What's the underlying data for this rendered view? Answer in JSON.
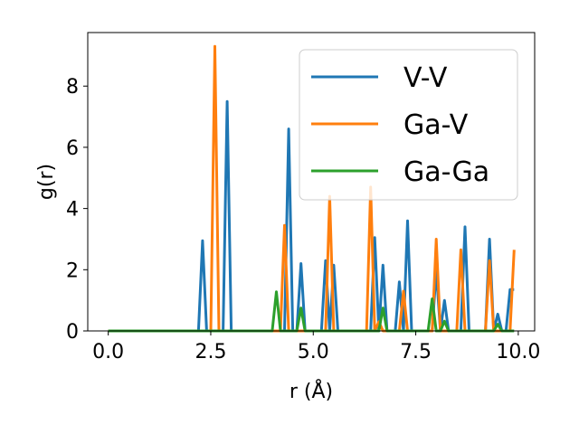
{
  "chart_data": {
    "type": "line",
    "title": "",
    "xlabel": "r (Å)",
    "ylabel": "g(r)",
    "xlim": [
      -0.5,
      10.4
    ],
    "ylim": [
      0,
      9.75
    ],
    "xticks": [
      0.0,
      2.5,
      5.0,
      7.5,
      10.0
    ],
    "xtick_labels": [
      "0.0",
      "2.5",
      "5.0",
      "7.5",
      "10.0"
    ],
    "yticks": [
      0,
      2,
      4,
      6,
      8
    ],
    "ytick_labels": [
      "0",
      "2",
      "4",
      "6",
      "8"
    ],
    "grid": false,
    "legend_position": "top-right",
    "series": [
      {
        "name": "V-V",
        "color": "#1f77b4",
        "x": [
          0,
          2.2,
          2.3,
          2.4,
          2.8,
          2.9,
          3.0,
          4.3,
          4.4,
          4.5,
          4.6,
          4.7,
          4.8,
          5.2,
          5.3,
          5.4,
          5.5,
          5.6,
          6.4,
          6.5,
          6.6,
          6.7,
          6.8,
          7.0,
          7.1,
          7.2,
          7.3,
          7.4,
          7.9,
          8.0,
          8.1,
          8.2,
          8.3,
          8.6,
          8.7,
          8.8,
          9.2,
          9.3,
          9.4,
          9.5,
          9.6,
          9.7,
          9.8,
          9.9
        ],
        "y": [
          0,
          0,
          2.95,
          0,
          0,
          7.5,
          0,
          0,
          6.6,
          0,
          0,
          2.2,
          0,
          0,
          2.3,
          0,
          2.15,
          0,
          0,
          3.05,
          0,
          2.15,
          0,
          0,
          1.6,
          0,
          3.6,
          0,
          0,
          2.0,
          0,
          1.0,
          0,
          0,
          3.4,
          0,
          0,
          3.0,
          0,
          0.55,
          0,
          0,
          1.35,
          1.35
        ]
      },
      {
        "name": "Ga-V",
        "color": "#ff7f0e",
        "x": [
          0,
          2.5,
          2.6,
          2.7,
          4.2,
          4.3,
          4.4,
          5.3,
          5.4,
          5.5,
          6.3,
          6.4,
          6.5,
          6.6,
          6.7,
          7.1,
          7.2,
          7.3,
          7.9,
          8.0,
          8.1,
          8.5,
          8.6,
          8.7,
          9.2,
          9.3,
          9.4,
          9.8,
          9.9
        ],
        "y": [
          0,
          0,
          9.3,
          0,
          0,
          3.45,
          0,
          0,
          4.4,
          0,
          0,
          4.7,
          0,
          0.3,
          0,
          0,
          1.3,
          0,
          0,
          3.0,
          0,
          0,
          2.65,
          0,
          0,
          2.3,
          0,
          0,
          2.65
        ]
      },
      {
        "name": "Ga-Ga",
        "color": "#2ca02c",
        "x": [
          0,
          4.0,
          4.1,
          4.2,
          4.6,
          4.7,
          4.8,
          6.6,
          6.7,
          6.8,
          7.8,
          7.9,
          8.0,
          8.1,
          8.2,
          8.3,
          9.4,
          9.5,
          9.6,
          9.9
        ],
        "y": [
          0,
          0,
          1.28,
          0,
          0,
          0.75,
          0,
          0,
          0.75,
          0,
          0,
          1.05,
          0,
          0,
          0.32,
          0,
          0,
          0.22,
          0,
          0
        ]
      }
    ]
  }
}
